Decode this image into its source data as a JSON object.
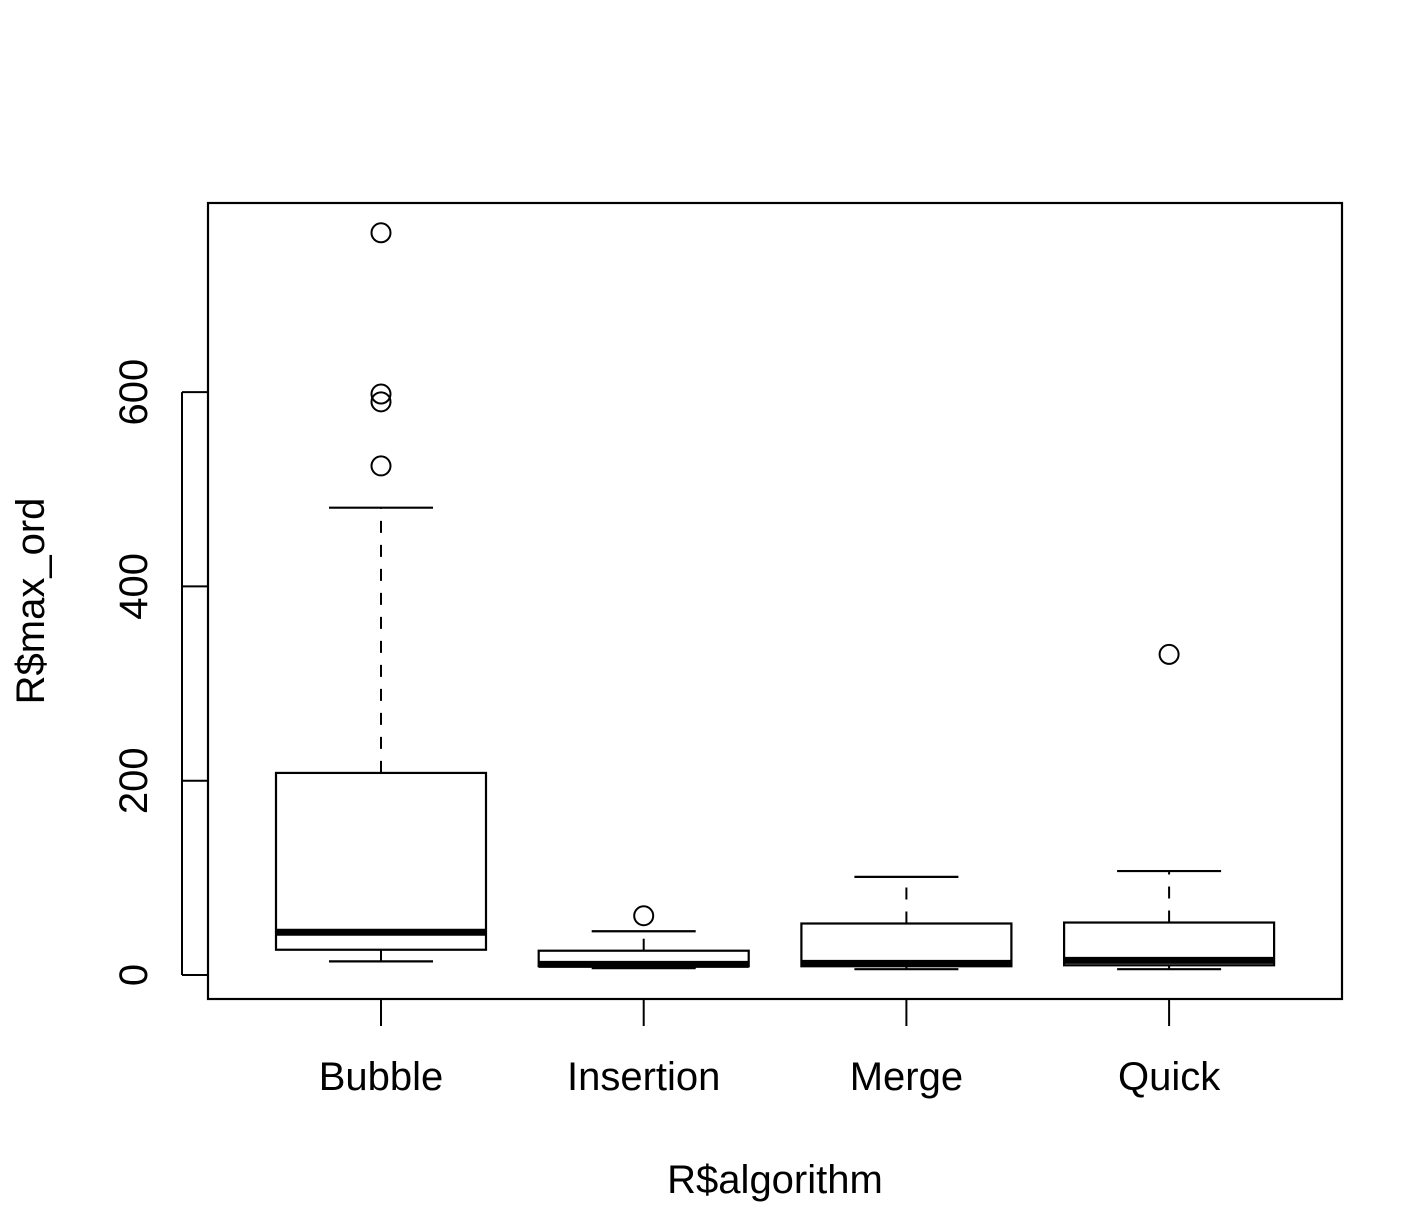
{
  "chart_data": {
    "type": "boxplot",
    "title": "",
    "xlabel": "R$algorithm",
    "ylabel": "R$max_ord",
    "categories": [
      "Bubble",
      "Insertion",
      "Merge",
      "Quick"
    ],
    "y_ticks": [
      "0",
      "200",
      "400",
      "600"
    ],
    "ylim": [
      -25,
      795
    ],
    "grid": false,
    "boxes": [
      {
        "name": "Bubble",
        "min": 14,
        "q1": 26,
        "median": 44,
        "q3": 208,
        "max": 481,
        "outliers": [
          524,
          590,
          598,
          764
        ]
      },
      {
        "name": "Insertion",
        "min": 7,
        "q1": 9,
        "median": 11,
        "q3": 25,
        "max": 45,
        "outliers": [
          61
        ]
      },
      {
        "name": "Merge",
        "min": 6,
        "q1": 9,
        "median": 12,
        "q3": 53,
        "max": 101,
        "outliers": []
      },
      {
        "name": "Quick",
        "min": 6,
        "q1": 10,
        "median": 15,
        "q3": 54,
        "max": 107,
        "outliers": [
          330
        ]
      }
    ]
  }
}
